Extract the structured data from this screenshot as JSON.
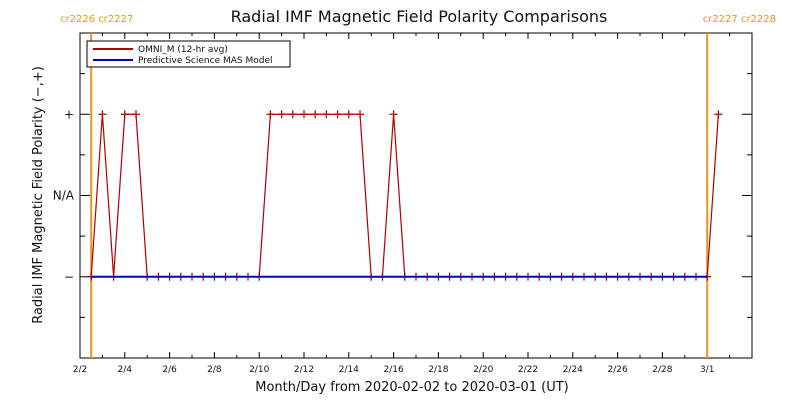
{
  "chart_data": {
    "type": "line",
    "title": "Radial IMF Magnetic Field Polarity Comparisons",
    "xlabel": "Month/Day from 2020-02-02 to 2020-03-01 (UT)",
    "ylabel": "Radial IMF Magnetic Field Polarity (−,+)",
    "xlim": [
      "2020-02-02",
      "2020-03-03"
    ],
    "x_ticks": [
      {
        "date": "2020-02-02",
        "label": "2/2"
      },
      {
        "date": "2020-02-04",
        "label": "2/4"
      },
      {
        "date": "2020-02-06",
        "label": "2/6"
      },
      {
        "date": "2020-02-08",
        "label": "2/8"
      },
      {
        "date": "2020-02-10",
        "label": "2/10"
      },
      {
        "date": "2020-02-12",
        "label": "2/12"
      },
      {
        "date": "2020-02-14",
        "label": "2/14"
      },
      {
        "date": "2020-02-16",
        "label": "2/16"
      },
      {
        "date": "2020-02-18",
        "label": "2/18"
      },
      {
        "date": "2020-02-20",
        "label": "2/20"
      },
      {
        "date": "2020-02-22",
        "label": "2/22"
      },
      {
        "date": "2020-02-24",
        "label": "2/24"
      },
      {
        "date": "2020-02-26",
        "label": "2/26"
      },
      {
        "date": "2020-02-28",
        "label": "2/28"
      },
      {
        "date": "2020-03-01",
        "label": "3/1"
      }
    ],
    "y_categories": [
      {
        "value": -1,
        "label": "−"
      },
      {
        "value": 0,
        "label": "N/A"
      },
      {
        "value": 1,
        "label": "+"
      }
    ],
    "ylim": [
      -2,
      2
    ],
    "series": [
      {
        "name": "OMNI_M (12-hr avg)",
        "color": "#b00000",
        "marker": "+",
        "start": "2020-02-02T12:00",
        "step_hours": 12,
        "values": [
          -1,
          1,
          -1,
          1,
          1,
          -1,
          -1,
          -1,
          -1,
          -1,
          -1,
          -1,
          -1,
          -1,
          -1,
          -1,
          1,
          1,
          1,
          1,
          1,
          1,
          1,
          1,
          1,
          -1,
          -1,
          1,
          -1,
          -1,
          -1,
          -1,
          -1,
          -1,
          -1,
          -1,
          -1,
          -1,
          -1,
          -1,
          -1,
          -1,
          -1,
          -1,
          -1,
          -1,
          -1,
          -1,
          -1,
          -1,
          -1,
          -1,
          -1,
          -1,
          -1,
          -1,
          1
        ]
      },
      {
        "name": "Predictive Science MAS Model",
        "color": "#0000c0",
        "points": [
          {
            "x": "2020-02-02T12:00",
            "y": -1
          },
          {
            "x": "2020-03-01T00:00",
            "y": -1
          }
        ]
      }
    ],
    "carrington_markers": [
      {
        "x": "2020-02-02T12:00",
        "label": "cr2226 cr2227",
        "side": "left"
      },
      {
        "x": "2020-03-01T00:00",
        "label": "cr2227 cr2228",
        "side": "right"
      }
    ],
    "marker_color": "#e8961e",
    "legend_position": "top-left",
    "grid": false
  }
}
